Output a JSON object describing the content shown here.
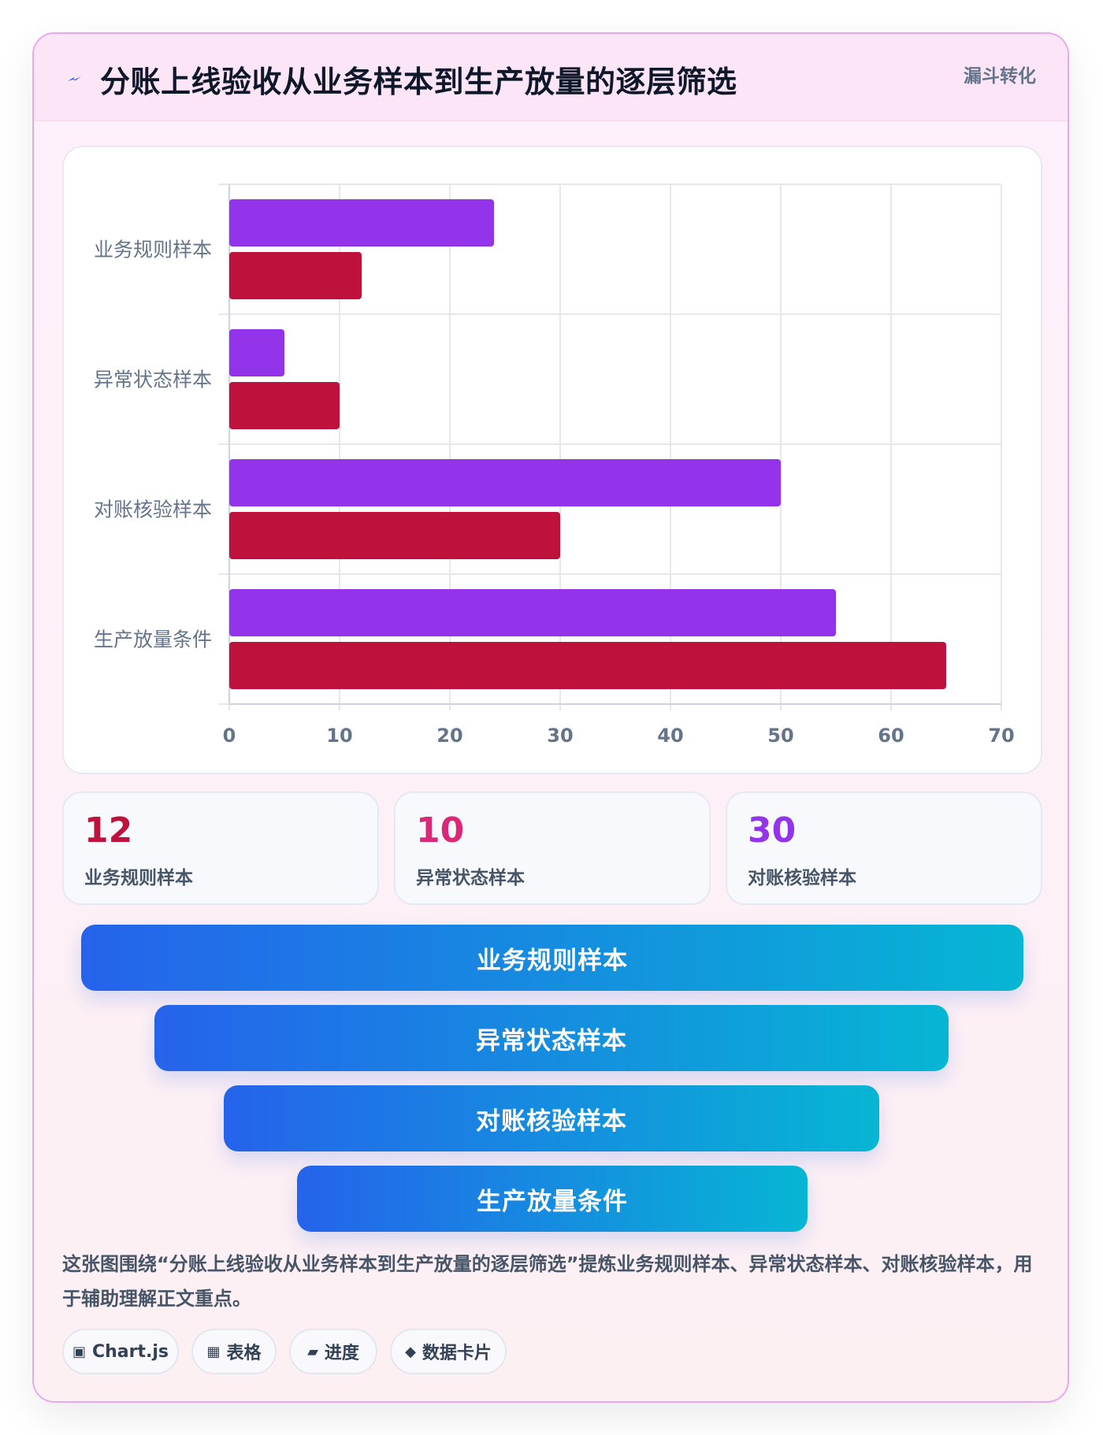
{
  "header": {
    "title": "分账上线验收从业务样本到生产放量的逐层筛选",
    "badge": "漏斗转化",
    "icon": "lightning-icon"
  },
  "chart_data": {
    "type": "bar",
    "orientation": "horizontal",
    "categories": [
      "业务规则样本",
      "异常状态样本",
      "对账核验样本",
      "生产放量条件"
    ],
    "series": [
      {
        "color": "#9333ea",
        "values": [
          24,
          5,
          50,
          55
        ]
      },
      {
        "color": "#be123c",
        "values": [
          12,
          10,
          30,
          65
        ]
      }
    ],
    "xlim": [
      0,
      70
    ],
    "x_ticks": [
      "0",
      "10",
      "20",
      "30",
      "40",
      "50",
      "60",
      "70"
    ],
    "grid": true,
    "legend": "none"
  },
  "stats": [
    {
      "value": "12",
      "label": "业务规则样本",
      "color": "#be123c"
    },
    {
      "value": "10",
      "label": "异常状态样本",
      "color": "#db2777"
    },
    {
      "value": "30",
      "label": "对账核验样本",
      "color": "#9333ea"
    }
  ],
  "funnel": [
    "业务规则样本",
    "异常状态样本",
    "对账核验样本",
    "生产放量条件"
  ],
  "description": "这张图围绕“分账上线验收从业务样本到生产放量的逐层筛选”提炼业务规则样本、异常状态样本、对账核验样本，用于辅助理解正文重点。",
  "tags": [
    {
      "icon": "▣",
      "label": "Chart.js"
    },
    {
      "icon": "▦",
      "label": "表格"
    },
    {
      "icon": "▰",
      "label": "进度"
    },
    {
      "icon": "◆",
      "label": "数据卡片"
    }
  ]
}
